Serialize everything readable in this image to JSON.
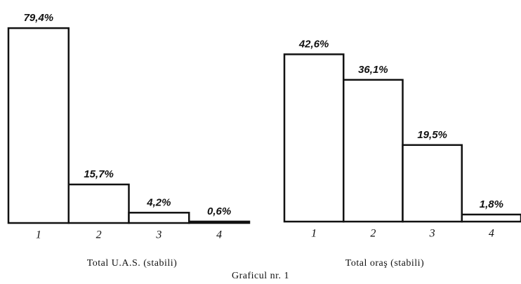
{
  "chart_data": [
    {
      "type": "bar",
      "title": "Total U.A.S. (stabili)",
      "categories": [
        "1",
        "2",
        "3",
        "4"
      ],
      "values": [
        79.4,
        15.7,
        4.2,
        0.6
      ],
      "value_labels": [
        "79,4%",
        "15,7%",
        "4,2%",
        "0,6%"
      ],
      "ylim": [
        0,
        80
      ],
      "color": "#ffffff"
    },
    {
      "type": "bar",
      "title": "Total oraş (stabili)",
      "categories": [
        "1",
        "2",
        "3",
        "4"
      ],
      "values": [
        42.6,
        36.1,
        19.5,
        1.8
      ],
      "value_labels": [
        "42,6%",
        "36,1%",
        "19,5%",
        "1,8%"
      ],
      "ylim": [
        0,
        50
      ],
      "color": "#ffffff"
    }
  ],
  "caption": "Graficul nr. 1"
}
